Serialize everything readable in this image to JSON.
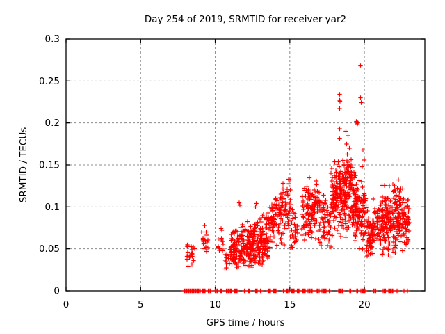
{
  "page": {
    "background": "#ffffff",
    "text_color": "#000000"
  },
  "chart_data": {
    "type": "scatter",
    "title": "Day 254 of 2019, SRMTID for receiver yar2",
    "xlabel": "GPS time / hours",
    "ylabel": "SRMTID / TECUs",
    "xlim": [
      0,
      24.05
    ],
    "ylim": [
      0,
      0.3
    ],
    "xticks": [
      0,
      5,
      10,
      15,
      20
    ],
    "xtick_labels": [
      "0",
      "5",
      "10",
      "15",
      "20"
    ],
    "yticks": [
      0,
      0.05,
      0.1,
      0.15,
      0.2,
      0.25,
      0.3
    ],
    "ytick_labels": [
      "0",
      "0.05",
      "0.1",
      "0.15",
      "0.2",
      "0.25",
      "0.3"
    ],
    "grid": true,
    "legend": "none",
    "marker_shape": "plus",
    "marker_color": "#ff0000",
    "marker_size": 3.2,
    "grid_color": "#8c8c8c",
    "axis_color": "#000000",
    "background": "#ffffff",
    "clusters": [
      {
        "t": [
          7.95,
          8.62
        ],
        "n": 22,
        "cols": 4,
        "v_low": [
          0.022,
          0.028
        ],
        "v_high": [
          0.068,
          0.055
        ],
        "bias": 1.0
      },
      {
        "t": [
          9.09,
          9.55
        ],
        "n": 20,
        "cols": 3,
        "v_low": [
          0.042,
          0.045
        ],
        "v_high": [
          0.078,
          0.07
        ],
        "bias": 0.9
      },
      {
        "t": [
          10.16,
          10.55
        ],
        "n": 12,
        "cols": 3,
        "v_low": [
          0.045,
          0.045
        ],
        "v_high": [
          0.075,
          0.06
        ],
        "bias": 1.2
      },
      {
        "t": [
          10.6,
          11.05
        ],
        "n": 15,
        "cols": 3,
        "v_low": [
          0.022,
          0.025
        ],
        "v_high": [
          0.052,
          0.05
        ],
        "bias": 1.0
      },
      {
        "t": [
          11.05,
          13.55
        ],
        "n": 330,
        "cols": 26,
        "v_low": [
          0.025,
          0.03
        ],
        "v_high": [
          0.075,
          0.095
        ],
        "bias": 1.15
      },
      {
        "t": [
          13.55,
          15.05
        ],
        "n": 140,
        "cols": 14,
        "v_low": [
          0.04,
          0.055
        ],
        "v_high": [
          0.11,
          0.148
        ],
        "bias": 1.0
      },
      {
        "t": [
          15.05,
          15.55
        ],
        "n": 30,
        "cols": 5,
        "v_low": [
          0.04,
          0.04
        ],
        "v_high": [
          0.12,
          0.1
        ],
        "bias": 1.1
      },
      {
        "t": [
          15.8,
          16.9
        ],
        "n": 120,
        "cols": 10,
        "v_low": [
          0.055,
          0.055
        ],
        "v_high": [
          0.13,
          0.148
        ],
        "bias": 0.95
      },
      {
        "t": [
          16.9,
          17.75
        ],
        "n": 70,
        "cols": 8,
        "v_low": [
          0.05,
          0.05
        ],
        "v_high": [
          0.125,
          0.11
        ],
        "bias": 1.1
      },
      {
        "t": [
          17.75,
          19.15
        ],
        "n": 230,
        "cols": 13,
        "v_low": [
          0.06,
          0.06
        ],
        "v_high": [
          0.155,
          0.165
        ],
        "bias": 0.85
      },
      {
        "t": [
          19.15,
          20.1
        ],
        "n": 150,
        "cols": 9,
        "v_low": [
          0.045,
          0.045
        ],
        "v_high": [
          0.165,
          0.13
        ],
        "bias": 1.0
      },
      {
        "t": [
          20.1,
          20.55
        ],
        "n": 60,
        "cols": 5,
        "v_low": [
          0.04,
          0.04
        ],
        "v_high": [
          0.11,
          0.085
        ],
        "bias": 1.3
      },
      {
        "t": [
          20.55,
          21.15
        ],
        "n": 60,
        "cols": 6,
        "v_low": [
          0.05,
          0.05
        ],
        "v_high": [
          0.115,
          0.11
        ],
        "bias": 1.1
      },
      {
        "t": [
          21.15,
          21.85
        ],
        "n": 110,
        "cols": 7,
        "v_low": [
          0.03,
          0.035
        ],
        "v_high": [
          0.135,
          0.13
        ],
        "bias": 1.0
      },
      {
        "t": [
          21.85,
          22.55
        ],
        "n": 110,
        "cols": 7,
        "v_low": [
          0.04,
          0.045
        ],
        "v_high": [
          0.145,
          0.13
        ],
        "bias": 1.05
      },
      {
        "t": [
          22.55,
          23.0
        ],
        "n": 55,
        "cols": 5,
        "v_low": [
          0.045,
          0.05
        ],
        "v_high": [
          0.125,
          0.115
        ],
        "bias": 1.1
      }
    ],
    "outlier_points": [
      [
        19.75,
        0.268
      ],
      [
        19.75,
        0.23
      ],
      [
        19.78,
        0.224
      ],
      [
        19.45,
        0.202
      ],
      [
        19.5,
        0.201
      ],
      [
        19.52,
        0.199
      ],
      [
        19.55,
        0.2
      ],
      [
        18.35,
        0.234
      ],
      [
        18.35,
        0.227
      ],
      [
        18.37,
        0.226
      ],
      [
        18.35,
        0.217
      ],
      [
        18.33,
        0.193
      ],
      [
        18.35,
        0.181
      ],
      [
        18.75,
        0.19
      ],
      [
        18.9,
        0.185
      ],
      [
        18.8,
        0.175
      ],
      [
        19.0,
        0.17
      ],
      [
        18.85,
        0.163
      ],
      [
        19.9,
        0.168
      ],
      [
        20.0,
        0.156
      ],
      [
        19.85,
        0.148
      ],
      [
        11.6,
        0.105
      ],
      [
        11.65,
        0.102
      ],
      [
        12.75,
        0.104
      ],
      [
        12.7,
        0.1
      ],
      [
        9.3,
        0.078
      ],
      [
        10.4,
        0.074
      ],
      [
        10.45,
        0.072
      ]
    ],
    "zero_value_runs": [
      [
        7.9,
        9.0
      ],
      [
        9.16,
        9.35
      ],
      [
        9.53,
        9.72
      ],
      [
        10.0,
        10.19
      ],
      [
        10.37,
        10.47
      ],
      [
        10.74,
        11.12
      ],
      [
        11.3,
        11.49
      ],
      [
        11.95,
        12.05
      ],
      [
        12.23,
        12.33
      ],
      [
        12.7,
        12.84
      ],
      [
        13.02,
        13.12
      ],
      [
        13.53,
        13.72
      ],
      [
        13.91,
        14.1
      ],
      [
        14.56,
        14.65
      ],
      [
        14.74,
        14.98
      ],
      [
        15.12,
        15.3
      ],
      [
        15.49,
        15.68
      ],
      [
        15.86,
        16.05
      ],
      [
        16.23,
        16.51
      ],
      [
        16.79,
        16.98
      ],
      [
        17.16,
        17.44
      ],
      [
        17.63,
        17.72
      ],
      [
        18.28,
        18.56
      ],
      [
        19.02,
        19.12
      ],
      [
        19.49,
        19.58
      ],
      [
        19.77,
        20.05
      ],
      [
        20.6,
        20.79
      ],
      [
        21.26,
        21.44
      ],
      [
        21.63,
        21.91
      ],
      [
        22.19,
        22.28
      ],
      [
        22.63,
        22.67
      ],
      [
        22.86,
        22.9
      ]
    ]
  }
}
